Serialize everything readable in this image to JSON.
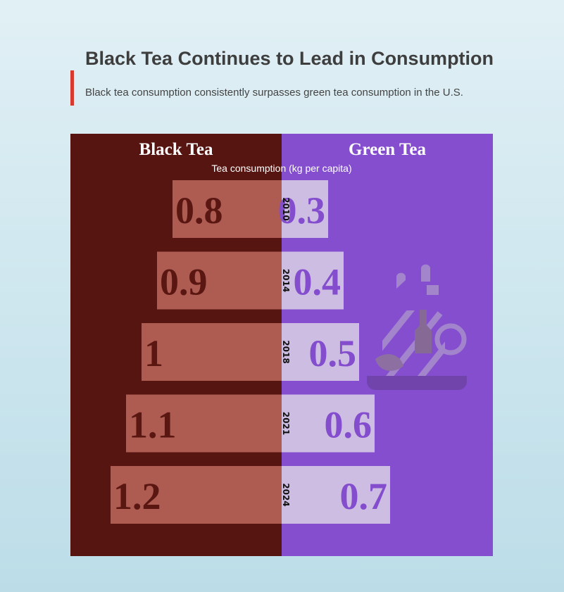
{
  "header": {
    "title": "Black Tea Continues to Lead in Consumption",
    "subtitle": "Black tea consumption consistently surpasses green tea consumption in the U.S."
  },
  "colors": {
    "accent": "#d83a30",
    "black_panel": "#561511",
    "black_bar": "#ae5b52",
    "black_text": "#5a1712",
    "green_panel": "#844ecf",
    "green_bar": "#cdbde2",
    "green_text": "#834dcd"
  },
  "icons": {
    "decoration": "tea-cup-icon"
  },
  "chart_data": {
    "type": "bar",
    "orientation": "diverging-horizontal",
    "axis_label": "Tea consumption (kg per capita)",
    "categories": [
      "2010",
      "2014",
      "2018",
      "2021",
      "2024"
    ],
    "series": [
      {
        "name": "Black Tea",
        "values": [
          0.8,
          0.9,
          1,
          1.1,
          1.2
        ]
      },
      {
        "name": "Green Tea",
        "values": [
          0.3,
          0.4,
          0.5,
          0.6,
          0.7
        ]
      }
    ]
  }
}
